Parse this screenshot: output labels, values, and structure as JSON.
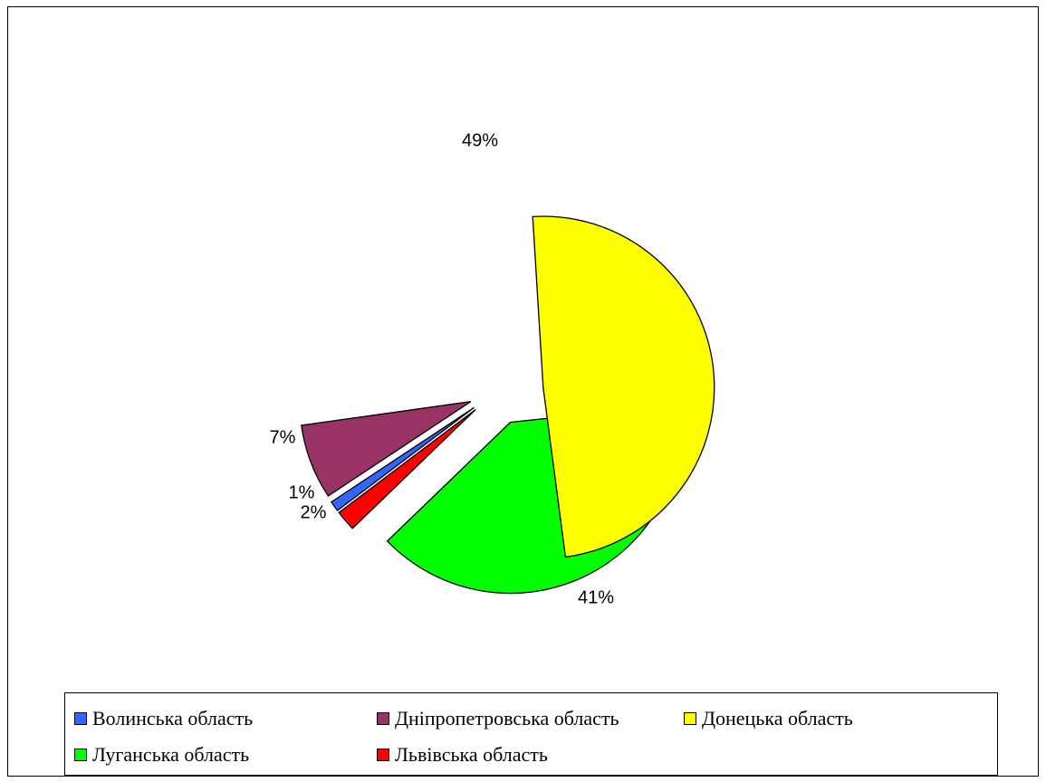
{
  "chart_data": {
    "type": "pie",
    "title": "",
    "unit": "%",
    "exploded": true,
    "legend_position": "bottom",
    "categories": [
      "Волинська область",
      "Дніпропетровська область",
      "Донецька область",
      "Луганська область",
      "Львівська область"
    ],
    "values": [
      1,
      7,
      49,
      41,
      2
    ],
    "labels": [
      "1%",
      "7%",
      "49%",
      "41%",
      "2%"
    ],
    "colors": [
      "#3366ff",
      "#993366",
      "#ffff00",
      "#00ff00",
      "#ff0000"
    ],
    "legend": [
      {
        "label": "Волинська область",
        "color": "#3366ff"
      },
      {
        "label": "Дніпропетровська область",
        "color": "#993366"
      },
      {
        "label": "Донецька область",
        "color": "#ffff00"
      },
      {
        "label": "Луганська область",
        "color": "#00ff00"
      },
      {
        "label": "Львівська область",
        "color": "#ff0000"
      }
    ]
  }
}
